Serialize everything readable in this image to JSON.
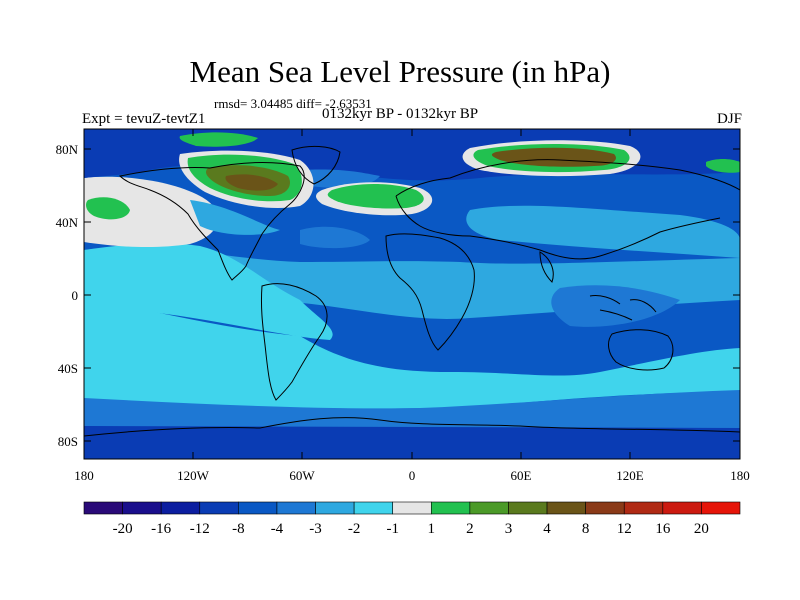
{
  "header": {
    "title": "Mean Sea Level Pressure (in hPa)",
    "stats": "rmsd= 3.04485 diff= -2.63531",
    "experiment": "Expt = tevuZ-tevtZ1",
    "period": "0132kyr BP - 0132kyr BP",
    "season": "DJF"
  },
  "axes": {
    "lat_labels": [
      "80N",
      "40N",
      "0",
      "40S",
      "80S"
    ],
    "lon_labels": [
      "180",
      "120W",
      "60W",
      "0",
      "60E",
      "120E",
      "180"
    ]
  },
  "colorbar": {
    "colors": [
      "#2a0a78",
      "#1a0f8c",
      "#0c1ea0",
      "#0a3cb4",
      "#0a58c4",
      "#1e78d4",
      "#2ea8e0",
      "#40d4ec",
      "#e6e6e6",
      "#22c150",
      "#4b9a28",
      "#5a7a1e",
      "#6a5418",
      "#8a3a18",
      "#b02a14",
      "#cc1a10",
      "#e61408"
    ],
    "labels": [
      "-20",
      "-16",
      "-12",
      "-8",
      "-4",
      "-3",
      "-2",
      "-1",
      "1",
      "2",
      "3",
      "4",
      "8",
      "12",
      "16",
      "20"
    ]
  }
}
